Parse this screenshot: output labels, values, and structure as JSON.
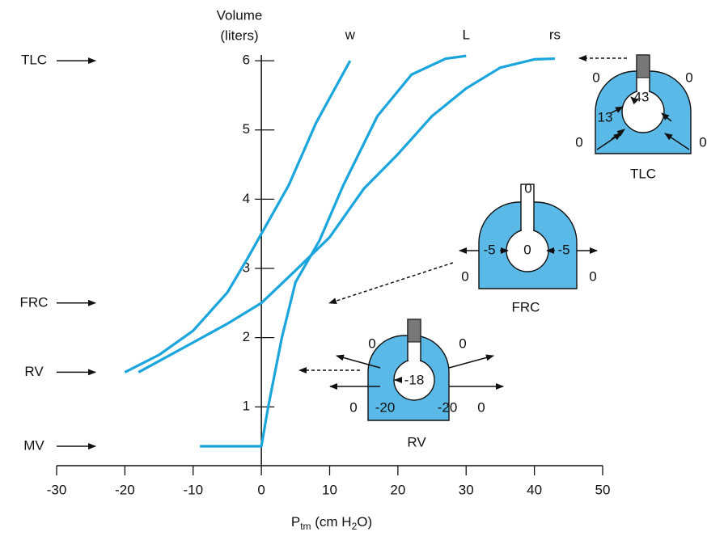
{
  "chart_data": {
    "type": "line",
    "ylabel": [
      "Volume",
      "(liters)"
    ],
    "xlabel": [
      "P",
      "tm",
      " (cm H",
      "2",
      "O)"
    ],
    "xlim": [
      -30,
      50
    ],
    "xticks": [
      -30,
      -20,
      -10,
      0,
      10,
      20,
      30,
      40,
      50
    ],
    "ylim": [
      0.15,
      6.2
    ],
    "yticks": [
      1,
      2,
      3,
      4,
      5,
      6
    ],
    "series": [
      {
        "name": "w",
        "color": "#1aa5dc",
        "x": [
          -20,
          -15,
          -10,
          -5,
          -2,
          0,
          4,
          8,
          13
        ],
        "values": [
          1.5,
          1.75,
          2.1,
          2.65,
          3.15,
          3.5,
          4.2,
          5.1,
          6.0
        ]
      },
      {
        "name": "L",
        "color": "#1aa5dc",
        "x": [
          -9,
          0,
          1,
          3,
          5,
          8.5,
          12,
          17,
          22,
          27,
          30
        ],
        "values": [
          0.43,
          0.43,
          1.0,
          2.0,
          2.8,
          3.4,
          4.2,
          5.2,
          5.8,
          6.03,
          6.07
        ]
      },
      {
        "name": "rs",
        "color": "#1aa5dc",
        "x": [
          -18,
          -10,
          -5,
          0,
          5,
          10,
          15,
          20,
          25,
          30,
          35,
          40,
          43
        ],
        "values": [
          1.5,
          1.93,
          2.2,
          2.5,
          2.97,
          3.45,
          4.15,
          4.65,
          5.2,
          5.6,
          5.9,
          6.02,
          6.03
        ]
      }
    ],
    "volume_markers": [
      {
        "label": "TLC",
        "value": 6
      },
      {
        "label": "FRC",
        "value": 2.5
      },
      {
        "label": "RV",
        "value": 1.5
      },
      {
        "label": "MV",
        "value": 0.43
      }
    ],
    "diagrams": [
      {
        "name": "TLC",
        "labels": [
          "0",
          "0",
          "43",
          "13",
          "0",
          "0"
        ]
      },
      {
        "name": "FRC",
        "labels": [
          "0",
          "-5",
          "0",
          "-5",
          "0",
          "0"
        ]
      },
      {
        "name": "RV",
        "labels": [
          "0",
          "0",
          "-18",
          "0",
          "-20",
          "-20",
          "0"
        ]
      }
    ]
  }
}
